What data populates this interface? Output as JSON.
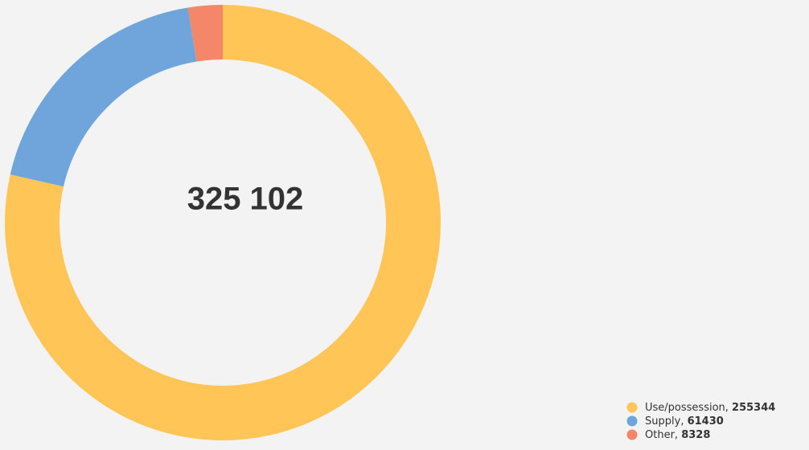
{
  "chart_data": {
    "type": "donut",
    "center_label": "325 102",
    "categories": [
      "Use/possession",
      "Supply",
      "Other"
    ],
    "values": [
      255344,
      61430,
      8328
    ],
    "colors": [
      "#ffc557",
      "#70a5db",
      "#f4866a"
    ],
    "legend_separator": ", ",
    "legend": "bottom-right"
  }
}
